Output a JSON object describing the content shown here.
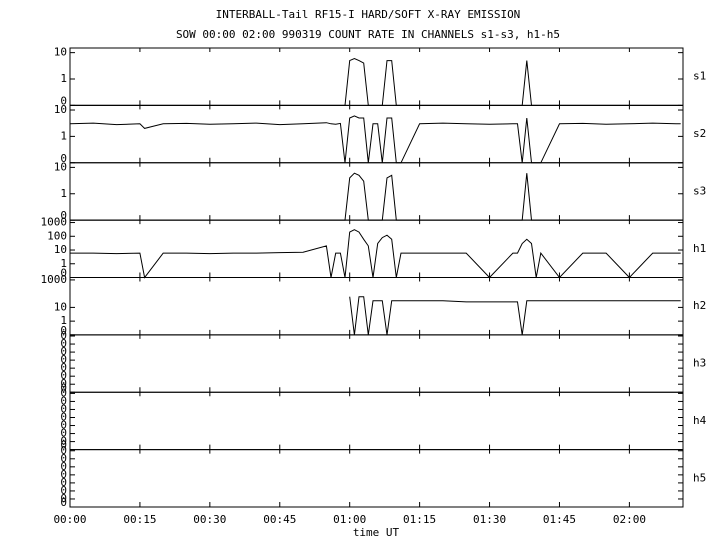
{
  "chart_data": {
    "type": "line",
    "title": "INTERBALL-Tail RF15-I HARD/SOFT X-RAY EMISSION",
    "subtitle": "SOW 00:00 02:00 990319  COUNT RATE IN CHANNELS s1-s3, h1-h5",
    "xlabel": "time UT",
    "x": [
      0,
      5,
      10,
      15,
      16,
      20,
      25,
      30,
      35,
      40,
      45,
      50,
      55,
      56,
      57,
      58,
      59,
      60,
      61,
      62,
      63,
      64,
      65,
      66,
      67,
      68,
      69,
      70,
      71,
      75,
      80,
      85,
      90,
      95,
      96,
      97,
      98,
      99,
      100,
      101,
      105,
      110,
      115,
      120,
      125,
      130,
      131
    ],
    "xlim": [
      0,
      131.5
    ],
    "xticks": [
      {
        "value": 0,
        "label": "00:00"
      },
      {
        "value": 15,
        "label": "00:15"
      },
      {
        "value": 30,
        "label": "00:30"
      },
      {
        "value": 45,
        "label": "00:45"
      },
      {
        "value": 60,
        "label": "01:00"
      },
      {
        "value": 75,
        "label": "01:15"
      },
      {
        "value": 90,
        "label": "01:30"
      },
      {
        "value": 105,
        "label": "01:45"
      },
      {
        "value": 120,
        "label": "02:00"
      }
    ],
    "series": [
      {
        "name": "s1",
        "color": "#000000",
        "log": true,
        "ylim": [
          0.1,
          15
        ],
        "yticks": [
          {
            "value": 0.1,
            "label": "0"
          },
          1,
          10
        ],
        "values": [
          0.1,
          0.1,
          0.1,
          0.1,
          0.1,
          0.1,
          0.1,
          0.1,
          0.1,
          0.1,
          0.1,
          0.1,
          0.1,
          0.1,
          0.1,
          0.1,
          0.1,
          5,
          6,
          5,
          4,
          0.1,
          0.1,
          0.1,
          0.1,
          5,
          5,
          0.1,
          0.1,
          0.1,
          0.1,
          0.1,
          0.1,
          0.1,
          0.1,
          0.1,
          5,
          0.1,
          0.1,
          0.1,
          0.1,
          0.1,
          0.1,
          0.1,
          0.1,
          0.1,
          0.1
        ]
      },
      {
        "name": "s2",
        "color": "#000000",
        "log": true,
        "ylim": [
          0.1,
          15
        ],
        "yticks": [
          {
            "value": 0.1,
            "label": "0"
          },
          1,
          10
        ],
        "values": [
          3,
          3.2,
          2.8,
          3,
          2,
          3,
          3.1,
          2.9,
          3,
          3.2,
          2.8,
          3,
          3.3,
          3,
          2.9,
          3.1,
          0.1,
          5,
          6,
          5,
          5,
          0.1,
          3,
          3,
          0.1,
          5,
          5,
          0.1,
          0.1,
          3,
          3.2,
          3,
          2.9,
          3,
          3,
          0.1,
          5,
          0.1,
          0.1,
          0.1,
          3,
          3.1,
          2.9,
          3,
          3.2,
          3,
          3
        ]
      },
      {
        "name": "s3",
        "color": "#000000",
        "log": true,
        "ylim": [
          0.1,
          15
        ],
        "yticks": [
          {
            "value": 0.1,
            "label": "0"
          },
          1,
          10
        ],
        "values": [
          0.1,
          0.1,
          0.1,
          0.1,
          0.1,
          0.1,
          0.1,
          0.1,
          0.1,
          0.1,
          0.1,
          0.1,
          0.1,
          0.1,
          0.1,
          0.1,
          0.1,
          4,
          6,
          5,
          3,
          0.1,
          0.1,
          0.1,
          0.1,
          4,
          5,
          0.1,
          0.1,
          0.1,
          0.1,
          0.1,
          0.1,
          0.1,
          0.1,
          0.1,
          6,
          0.1,
          0.1,
          0.1,
          0.1,
          0.1,
          0.1,
          0.1,
          0.1,
          0.1,
          0.1
        ]
      },
      {
        "name": "h1",
        "color": "#000000",
        "log": true,
        "ylim": [
          0.1,
          1500
        ],
        "yticks": [
          {
            "value": 0.1,
            "label": "0"
          },
          1,
          10,
          100,
          1000
        ],
        "values": [
          6,
          6,
          5.5,
          6,
          0.1,
          6,
          6,
          5.5,
          6,
          6,
          6.5,
          7,
          20,
          0.1,
          6,
          6,
          0.1,
          200,
          300,
          200,
          60,
          20,
          0.1,
          30,
          80,
          120,
          60,
          0.1,
          6,
          6,
          6,
          6,
          0.1,
          6,
          6,
          30,
          60,
          30,
          0.1,
          6,
          0.1,
          6,
          6,
          0.1,
          6,
          6,
          6
        ]
      },
      {
        "name": "h2",
        "color": "#000000",
        "log": true,
        "ylim": [
          0.1,
          1500
        ],
        "yticks": [
          {
            "value": 0.1,
            "label": "0"
          },
          1,
          10,
          1000
        ],
        "values": [
          null,
          null,
          null,
          null,
          null,
          null,
          null,
          null,
          null,
          null,
          null,
          null,
          null,
          null,
          null,
          null,
          null,
          60,
          0.1,
          60,
          60,
          0.1,
          30,
          30,
          30,
          0.1,
          30,
          30,
          30,
          30,
          30,
          25,
          25,
          25,
          25,
          0.1,
          30,
          30,
          30,
          30,
          30,
          30,
          30,
          30,
          30,
          30,
          30
        ]
      },
      {
        "name": "h3",
        "color": "#000000",
        "log": false,
        "ylim": [
          0,
          1
        ],
        "yticks": [
          {
            "value": 0,
            "label": "0"
          },
          {
            "value": 0.14,
            "label": "0"
          },
          {
            "value": 0.28,
            "label": "0"
          },
          {
            "value": 0.42,
            "label": "0"
          },
          {
            "value": 0.56,
            "label": "0"
          },
          {
            "value": 0.7,
            "label": "0"
          },
          {
            "value": 0.84,
            "label": "0"
          },
          {
            "value": 0.98,
            "label": "0"
          }
        ],
        "values": [
          null,
          null,
          null,
          null,
          null,
          null,
          null,
          null,
          null,
          null,
          null,
          null,
          null,
          null,
          null,
          null,
          null,
          null,
          null,
          null,
          null,
          null,
          null,
          null,
          null,
          null,
          null,
          null,
          null,
          null,
          null,
          null,
          null,
          null,
          null,
          null,
          null,
          null,
          null,
          null,
          null,
          null,
          null,
          null,
          null,
          null,
          null
        ]
      },
      {
        "name": "h4",
        "color": "#000000",
        "log": false,
        "ylim": [
          0,
          1
        ],
        "yticks": [
          {
            "value": 0,
            "label": "0"
          },
          {
            "value": 0.14,
            "label": "0"
          },
          {
            "value": 0.28,
            "label": "0"
          },
          {
            "value": 0.42,
            "label": "0"
          },
          {
            "value": 0.56,
            "label": "0"
          },
          {
            "value": 0.7,
            "label": "0"
          },
          {
            "value": 0.84,
            "label": "0"
          },
          {
            "value": 0.98,
            "label": "0"
          }
        ],
        "values": [
          null,
          null,
          null,
          null,
          null,
          null,
          null,
          null,
          null,
          null,
          null,
          null,
          null,
          null,
          null,
          null,
          null,
          null,
          null,
          null,
          null,
          null,
          null,
          null,
          null,
          null,
          null,
          null,
          null,
          null,
          null,
          null,
          null,
          null,
          null,
          null,
          null,
          null,
          null,
          null,
          null,
          null,
          null,
          null,
          null,
          null,
          null
        ]
      },
      {
        "name": "h5",
        "color": "#000000",
        "log": false,
        "ylim": [
          0,
          1
        ],
        "yticks": [
          {
            "value": 0,
            "label": "0"
          },
          {
            "value": 0.14,
            "label": "0"
          },
          {
            "value": 0.28,
            "label": "0"
          },
          {
            "value": 0.42,
            "label": "0"
          },
          {
            "value": 0.56,
            "label": "0"
          },
          {
            "value": 0.7,
            "label": "0"
          },
          {
            "value": 0.84,
            "label": "0"
          },
          {
            "value": 0.98,
            "label": "0"
          }
        ],
        "values": [
          null,
          null,
          null,
          null,
          null,
          null,
          null,
          null,
          null,
          null,
          null,
          null,
          null,
          null,
          null,
          null,
          null,
          null,
          null,
          null,
          null,
          null,
          null,
          null,
          null,
          null,
          null,
          null,
          null,
          null,
          null,
          null,
          null,
          null,
          null,
          null,
          null,
          null,
          null,
          null,
          null,
          null,
          null,
          null,
          null,
          null,
          null
        ]
      }
    ]
  }
}
